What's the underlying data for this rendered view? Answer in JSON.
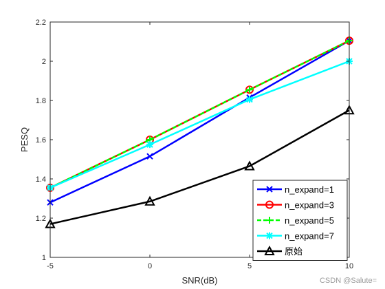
{
  "chart_data": {
    "type": "line",
    "xlabel": "SNR(dB)",
    "ylabel": "PESQ",
    "x": [
      -5,
      0,
      5,
      10
    ],
    "xticks": [
      "-5",
      "0",
      "5",
      "10"
    ],
    "yticks": [
      "1",
      "1.2",
      "1.4",
      "1.6",
      "1.8",
      "2",
      "2.2"
    ],
    "xlim": [
      -5,
      10
    ],
    "ylim": [
      1,
      2.2
    ],
    "grid": false,
    "legend_position": "bottom-right",
    "series": [
      {
        "name": "n_expand=1",
        "color": "#0000ff",
        "marker": "x",
        "dash": "solid",
        "values": [
          1.28,
          1.515,
          1.815,
          2.105
        ]
      },
      {
        "name": "n_expand=3",
        "color": "#ff0000",
        "marker": "o",
        "dash": "solid",
        "values": [
          1.355,
          1.6,
          1.855,
          2.105
        ]
      },
      {
        "name": "n_expand=5",
        "color": "#00ff00",
        "marker": "+",
        "dash": "dashed",
        "values": [
          1.355,
          1.6,
          1.855,
          2.105
        ]
      },
      {
        "name": "n_expand=7",
        "color": "#00ffff",
        "marker": "*",
        "dash": "solid",
        "values": [
          1.355,
          1.575,
          1.805,
          2.0
        ]
      },
      {
        "name": "原始",
        "color": "#000000",
        "marker": "triangle",
        "dash": "solid",
        "values": [
          1.17,
          1.285,
          1.465,
          1.75
        ]
      }
    ]
  },
  "watermark": "CSDN @Salute="
}
